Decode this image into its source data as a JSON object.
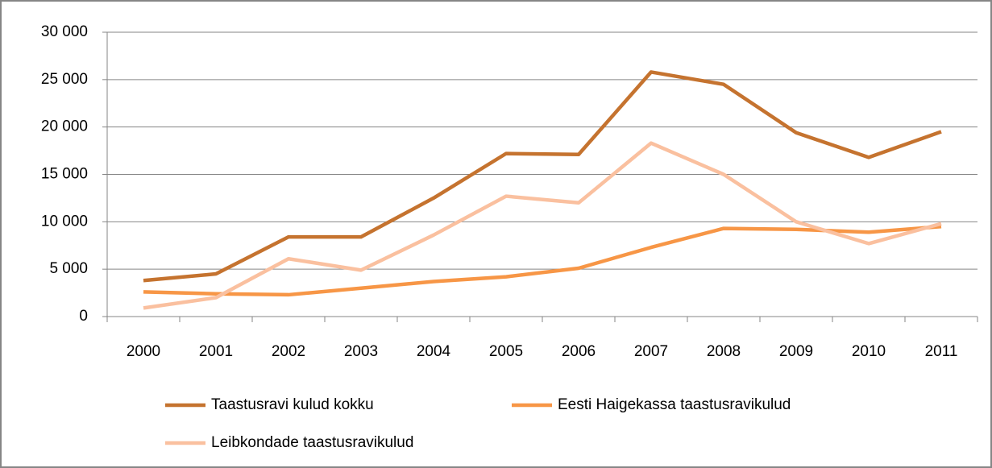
{
  "chart_data": {
    "type": "line",
    "categories": [
      "2000",
      "2001",
      "2002",
      "2003",
      "2004",
      "2005",
      "2006",
      "2007",
      "2008",
      "2009",
      "2010",
      "2011"
    ],
    "series": [
      {
        "name": "Taastusravi kulud kokku",
        "color": "#c5732f",
        "values": [
          3800,
          4500,
          8400,
          8400,
          12500,
          17200,
          17100,
          25800,
          24500,
          19400,
          16800,
          19500
        ]
      },
      {
        "name": "Eesti Haigekassa taastusravikulud",
        "color": "#f79646",
        "values": [
          2600,
          2400,
          2300,
          3000,
          3700,
          4200,
          5100,
          7300,
          9300,
          9200,
          8900,
          9500
        ]
      },
      {
        "name": "Leibkondade taastusravikulud",
        "color": "#fac09f",
        "values": [
          900,
          2000,
          6100,
          4900,
          8600,
          12700,
          12000,
          18300,
          15000,
          10000,
          7700,
          9800
        ]
      }
    ],
    "ylim": [
      0,
      30000
    ],
    "yticks": [
      0,
      {
        "value": 5000,
        "label": "5 000"
      },
      {
        "value": 10000,
        "label": "10 000"
      },
      {
        "value": 15000,
        "label": "15 000"
      },
      {
        "value": 20000,
        "label": "20 000"
      },
      {
        "value": 25000,
        "label": "25 000"
      },
      {
        "value": 30000,
        "label": "30 000"
      }
    ],
    "grid": true,
    "legend_position": "bottom"
  }
}
